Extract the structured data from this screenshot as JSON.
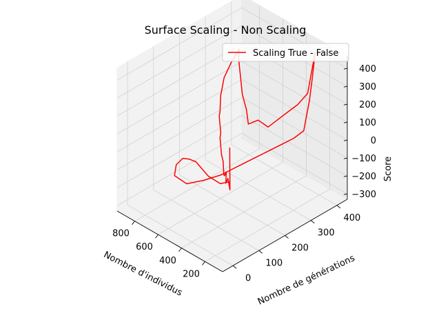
{
  "chart_data": {
    "type": "line3d",
    "title": "Surface Scaling - Non Scaling",
    "xlabel": "Nombre d'individus",
    "ylabel": "Nombre de générations",
    "zlabel": "Score",
    "xlim": [
      50,
      950
    ],
    "ylim": [
      -40,
      440
    ],
    "zlim": [
      -330,
      470
    ],
    "x_ticks": [
      200,
      400,
      600,
      800
    ],
    "y_ticks": [
      0,
      100,
      200,
      300,
      400
    ],
    "z_ticks": [
      -300,
      -200,
      -100,
      0,
      100,
      200,
      300,
      400
    ],
    "x_tick_labels": [
      "200",
      "400",
      "600",
      "800"
    ],
    "y_tick_labels": [
      "0",
      "100",
      "200",
      "300",
      "400"
    ],
    "z_tick_labels": [
      "−300",
      "−200",
      "−100",
      "0",
      "100",
      "200",
      "300",
      "400"
    ],
    "grid": true,
    "legend_position": "top-right",
    "series": [
      {
        "name": "Scaling True - False",
        "color": "#ff0000",
        "points": [
          [
            100,
            10,
            300
          ],
          [
            120,
            20,
            50
          ],
          [
            160,
            30,
            90
          ],
          [
            200,
            40,
            40
          ],
          [
            240,
            60,
            70
          ],
          [
            300,
            80,
            10
          ],
          [
            350,
            100,
            -20
          ],
          [
            400,
            120,
            20
          ],
          [
            480,
            150,
            0
          ],
          [
            560,
            180,
            40
          ],
          [
            620,
            210,
            20
          ],
          [
            700,
            240,
            60
          ],
          [
            760,
            270,
            30
          ],
          [
            820,
            300,
            80
          ],
          [
            860,
            320,
            60
          ],
          [
            880,
            340,
            120
          ],
          [
            860,
            360,
            200
          ],
          [
            840,
            380,
            260
          ],
          [
            800,
            360,
            240
          ],
          [
            740,
            340,
            180
          ],
          [
            680,
            320,
            120
          ],
          [
            600,
            300,
            80
          ],
          [
            540,
            280,
            40
          ],
          [
            500,
            300,
            60
          ],
          [
            460,
            320,
            20
          ],
          [
            420,
            340,
            60
          ],
          [
            380,
            360,
            100
          ],
          [
            340,
            380,
            140
          ],
          [
            300,
            400,
            200
          ],
          [
            280,
            420,
            420
          ],
          [
            260,
            400,
            300
          ],
          [
            240,
            380,
            200
          ],
          [
            220,
            360,
            140
          ],
          [
            200,
            340,
            80
          ],
          [
            240,
            320,
            40
          ],
          [
            300,
            300,
            0
          ],
          [
            360,
            280,
            -40
          ],
          [
            420,
            260,
            -80
          ],
          [
            480,
            240,
            -120
          ],
          [
            540,
            220,
            -160
          ],
          [
            600,
            200,
            -200
          ],
          [
            700,
            180,
            -250
          ],
          [
            800,
            160,
            -290
          ],
          [
            860,
            140,
            -250
          ],
          [
            800,
            120,
            -150
          ],
          [
            700,
            100,
            -60
          ],
          [
            600,
            80,
            -10
          ],
          [
            500,
            60,
            30
          ],
          [
            420,
            40,
            50
          ],
          [
            340,
            20,
            70
          ],
          [
            260,
            0,
            90
          ],
          [
            180,
            10,
            70
          ],
          [
            140,
            30,
            80
          ]
        ]
      }
    ]
  }
}
